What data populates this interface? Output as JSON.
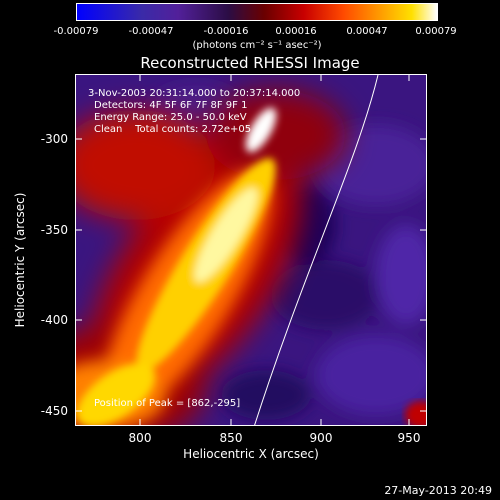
{
  "colorbar": {
    "ticks": [
      "-0.00079",
      "-0.00047",
      "-0.00016",
      "0.00016",
      "0.00047",
      "0.00079"
    ],
    "units": "(photons cm⁻² s⁻¹ asec⁻²)"
  },
  "plot": {
    "title": "Reconstructed RHESSI Image",
    "xlabel": "Heliocentric X (arcsec)",
    "ylabel": "Heliocentric Y (arcsec)",
    "xticks": [
      "800",
      "850",
      "900",
      "950"
    ],
    "yticks": [
      "-300",
      "-350",
      "-400",
      "-450"
    ],
    "xrange": [
      765,
      960
    ],
    "yrange": [
      -460,
      -265
    ]
  },
  "info": {
    "time": "3-Nov-2003 20:31:14.000 to 20:37:14.000",
    "detectors": "Detectors: 4F 5F 6F 7F 8F 9F 1",
    "energy": "Energy Range: 25.0 - 50.0 keV",
    "clean": "Clean    Total counts: 2.72e+05",
    "peak": "Position of Peak = [862,-295]"
  },
  "footer": {
    "date": "27-May-2013 20:49"
  },
  "colors": {
    "background": "#000000",
    "purple": "#3a1580",
    "deep_purple": "#1a0060",
    "red": "#c80000",
    "orange": "#ff7800",
    "yellow": "#ffe000",
    "white": "#ffffff"
  }
}
